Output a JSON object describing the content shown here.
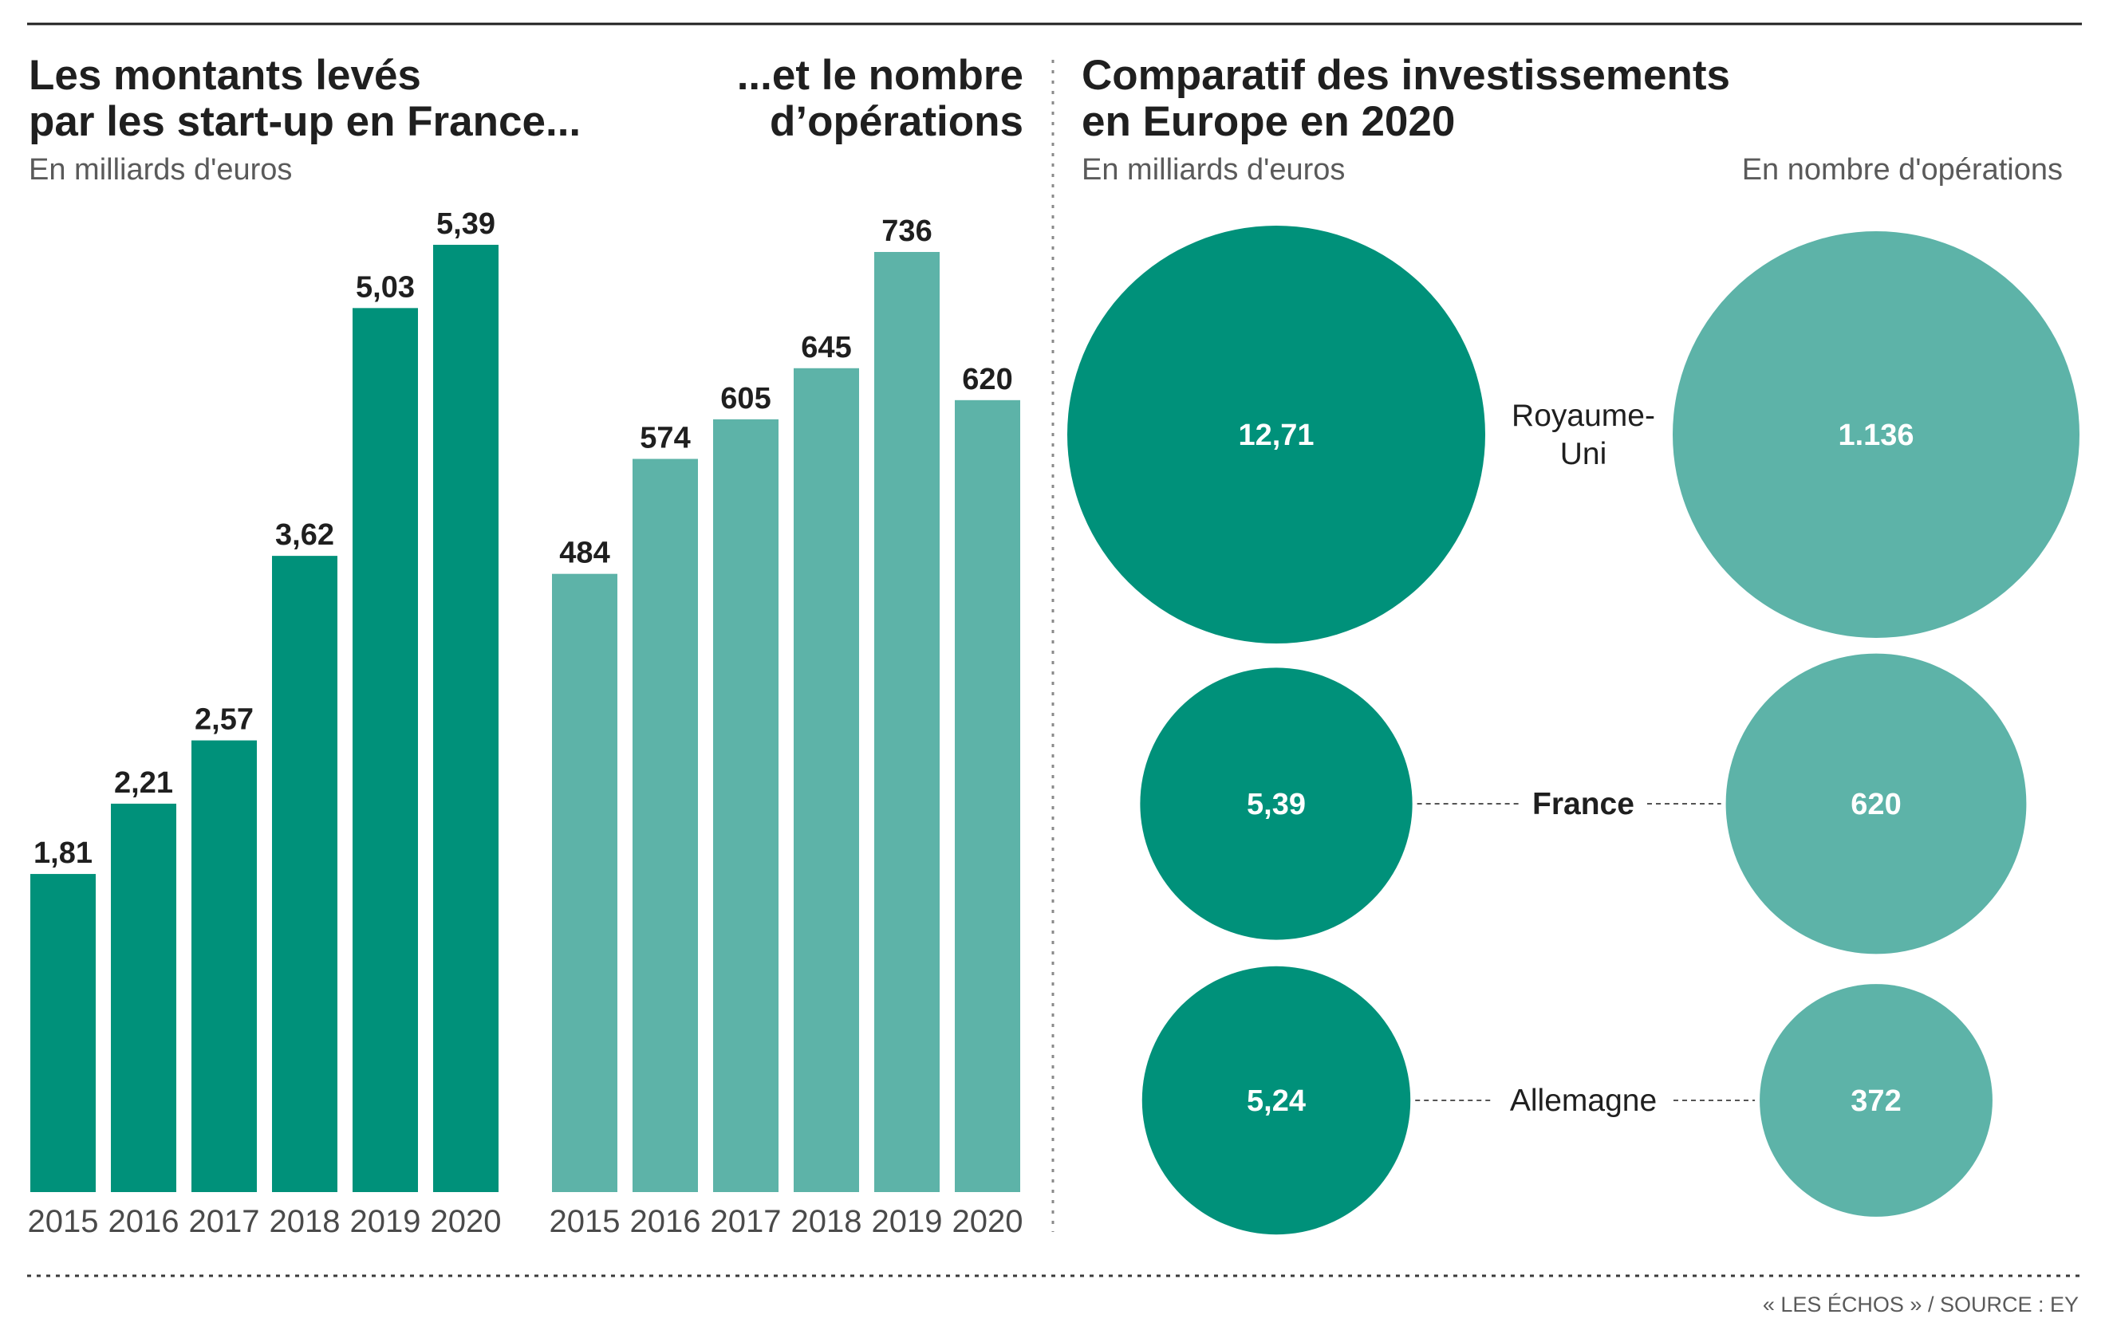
{
  "colors": {
    "dark_green": "#00917a",
    "light_green": "#5db3a8",
    "text": "#1f1f1f",
    "subtext": "#5a5a5a"
  },
  "chart_data": [
    {
      "type": "bar",
      "title": "Les montants levés par les start-up en France...",
      "title_lines": [
        "Les montants levés",
        "par les start-up en France..."
      ],
      "subtitle": "En milliards d'euros",
      "categories": [
        "2015",
        "2016",
        "2017",
        "2018",
        "2019",
        "2020"
      ],
      "values": [
        1.81,
        2.21,
        2.57,
        3.62,
        5.03,
        5.39
      ],
      "value_labels": [
        "1,81",
        "2,21",
        "2,57",
        "3,62",
        "5,03",
        "5,39"
      ],
      "color": "#00917a",
      "ylim": [
        0,
        5.39
      ]
    },
    {
      "type": "bar",
      "title": "...et le nombre d'opérations",
      "title_lines": [
        "...et le nombre",
        "d’opérations"
      ],
      "categories": [
        "2015",
        "2016",
        "2017",
        "2018",
        "2019",
        "2020"
      ],
      "values": [
        484,
        574,
        605,
        645,
        736,
        620
      ],
      "value_labels": [
        "484",
        "574",
        "605",
        "645",
        "736",
        "620"
      ],
      "color": "#5db3a8",
      "ylim": [
        0,
        736
      ]
    },
    {
      "type": "bubble",
      "title": "Comparatif des investissements en Europe en 2020",
      "title_lines": [
        "Comparatif des investissements",
        "en Europe en 2020"
      ],
      "left_subtitle": "En milliards d'euros",
      "right_subtitle": "En nombre d'opérations",
      "countries": [
        {
          "name_lines": [
            "Royaume-",
            "Uni"
          ],
          "amount": 12.71,
          "amount_label": "12,71",
          "operations": 1136,
          "operations_label": "1.136",
          "bold": false,
          "connector": false
        },
        {
          "name_lines": [
            "France"
          ],
          "amount": 5.39,
          "amount_label": "5,39",
          "operations": 620,
          "operations_label": "620",
          "bold": true,
          "connector": true
        },
        {
          "name_lines": [
            "Allemagne"
          ],
          "amount": 5.24,
          "amount_label": "5,24",
          "operations": 372,
          "operations_label": "372",
          "bold": false,
          "connector": true
        }
      ],
      "left_color": "#00917a",
      "right_color": "#5db3a8"
    }
  ],
  "source": "« LES ÉCHOS » / SOURCE : EY"
}
